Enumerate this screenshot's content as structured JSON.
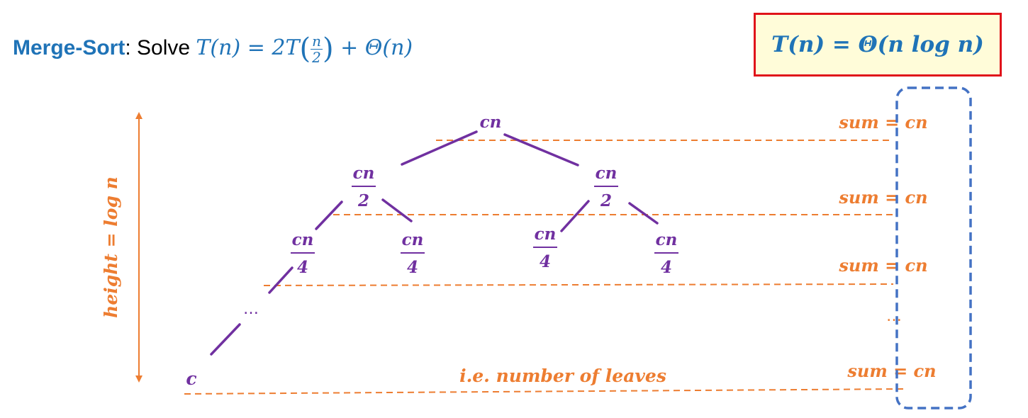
{
  "header": {
    "name": "Merge-Sort",
    "solve_text": ": Solve ",
    "recurrence_lhs": "T(n) = 2T",
    "frac_num": "n",
    "frac_den": "2",
    "recurrence_rhs": " + Θ(n)"
  },
  "result": "T(n) = Θ(n log n)",
  "tree": {
    "root": "cn",
    "level1_num": "cn",
    "level1_den": "2",
    "level2_num": "cn",
    "level2_den": "4",
    "ellipsis": "…",
    "leaf": "c"
  },
  "height_label": "height = log n",
  "leaves_label": "i.e. number of leaves",
  "sums": [
    "sum = cn",
    "sum = cn",
    "sum = cn",
    "sum = cn"
  ],
  "sum_ellipsis": "…",
  "colors": {
    "title_blue": "#1f73b7",
    "tree_purple": "#7030a0",
    "annotation_orange": "#ed7d31",
    "box_red": "#e0131a",
    "box_fill": "#fffcd9",
    "dashed_blue": "#4472c4"
  }
}
